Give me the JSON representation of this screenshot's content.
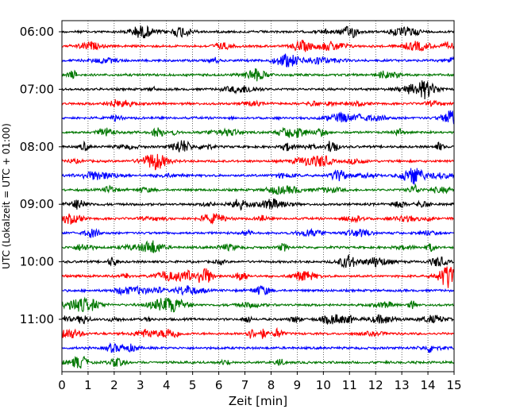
{
  "chart_data": {
    "type": "line",
    "title": "",
    "xlabel": "Zeit  [min]",
    "ylabel": "UTC (Lokalzeit = UTC + 01:00)",
    "xlim": [
      0,
      15
    ],
    "x_ticks": [
      "0",
      "1",
      "2",
      "3",
      "4",
      "5",
      "6",
      "7",
      "8",
      "9",
      "10",
      "11",
      "12",
      "13",
      "14",
      "15"
    ],
    "y_tick_labels": [
      "06:00",
      "07:00",
      "08:00",
      "09:00",
      "10:00",
      "11:00"
    ],
    "trace_interval_min": 15,
    "start_time": "06:00",
    "end_time": "11:45",
    "trace_count": 24,
    "trace_colors": [
      "#000000",
      "#ff0000",
      "#0000ff",
      "#007700"
    ],
    "grid": "vertical-dotted",
    "legend": "none"
  }
}
